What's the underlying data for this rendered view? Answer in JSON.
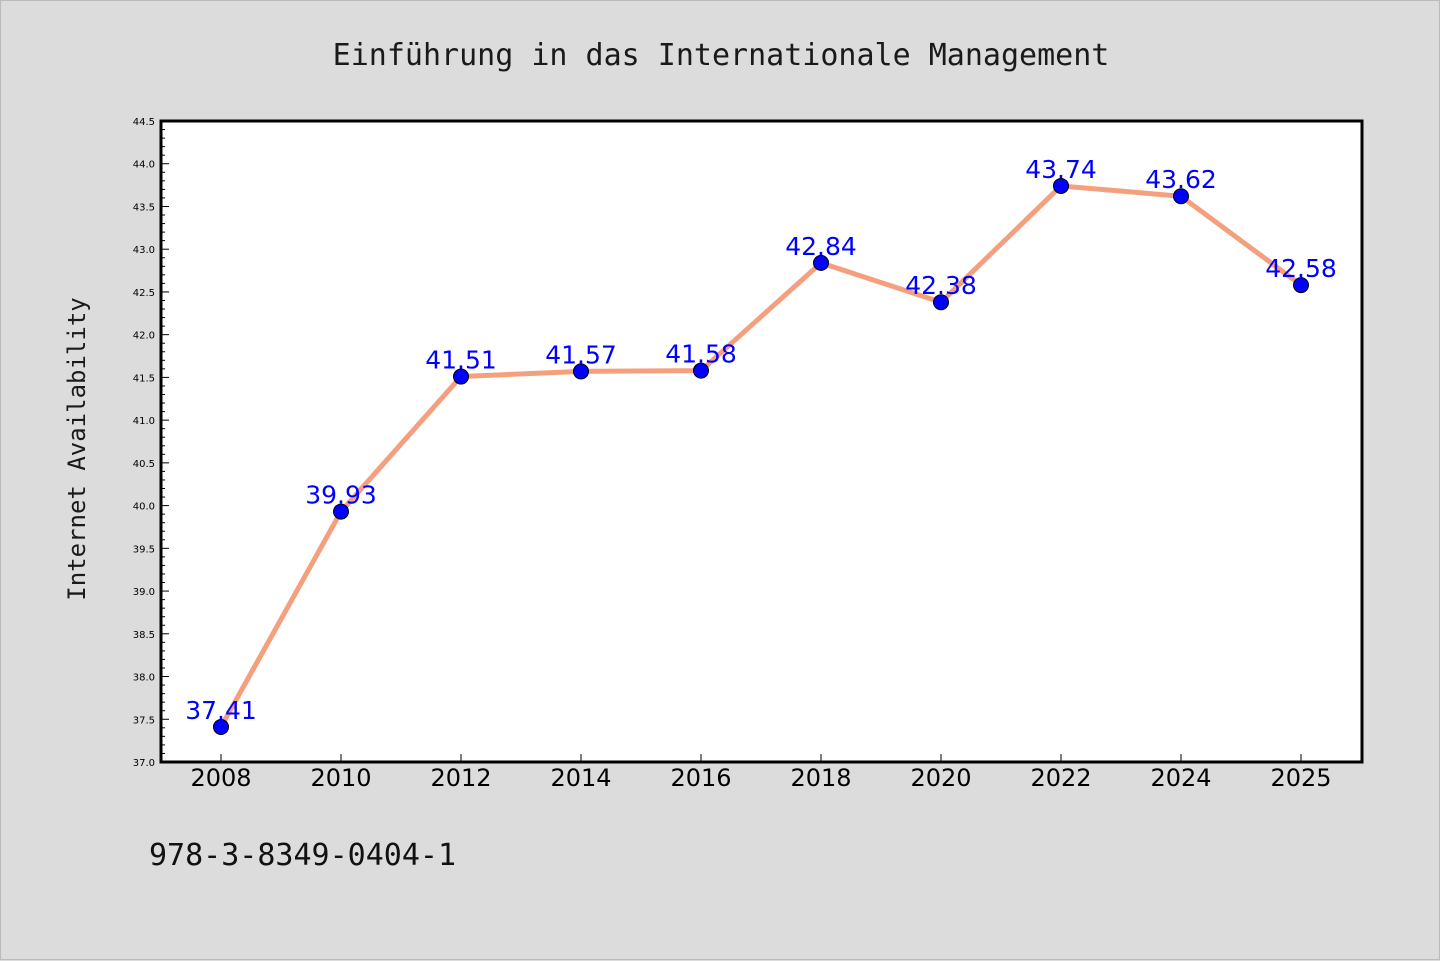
{
  "chart_data": {
    "type": "line",
    "title": "Einführung in das Internationale Management",
    "xlabel": "",
    "ylabel": "Internet Availability",
    "categories": [
      "2008",
      "2010",
      "2012",
      "2014",
      "2016",
      "2018",
      "2020",
      "2022",
      "2024",
      "2025"
    ],
    "series": [
      {
        "values": [
          37.41,
          39.93,
          41.51,
          41.57,
          41.58,
          42.84,
          42.38,
          43.74,
          43.62,
          42.58
        ],
        "data_labels": [
          "37.41",
          "39.93",
          "41.51",
          "41.57",
          "41.58",
          "42.84",
          "42.38",
          "43.74",
          "43.62",
          "42.58"
        ],
        "line_color": "#f4a07e",
        "marker_color": "#0000ff"
      }
    ],
    "ylim": [
      37.0,
      44.5
    ],
    "yticks": [
      "37.0",
      "37.5",
      "38.0",
      "38.5",
      "39.0",
      "39.5",
      "40.0",
      "40.5",
      "41.0",
      "41.5",
      "42.0",
      "42.5",
      "43.0",
      "43.5",
      "44.0",
      "44.5"
    ],
    "grid": false,
    "legend": "none",
    "background": "#dcdcdc",
    "plot_background": "#ffffff"
  },
  "footer": {
    "isbn": "978-3-8349-0404-1"
  }
}
